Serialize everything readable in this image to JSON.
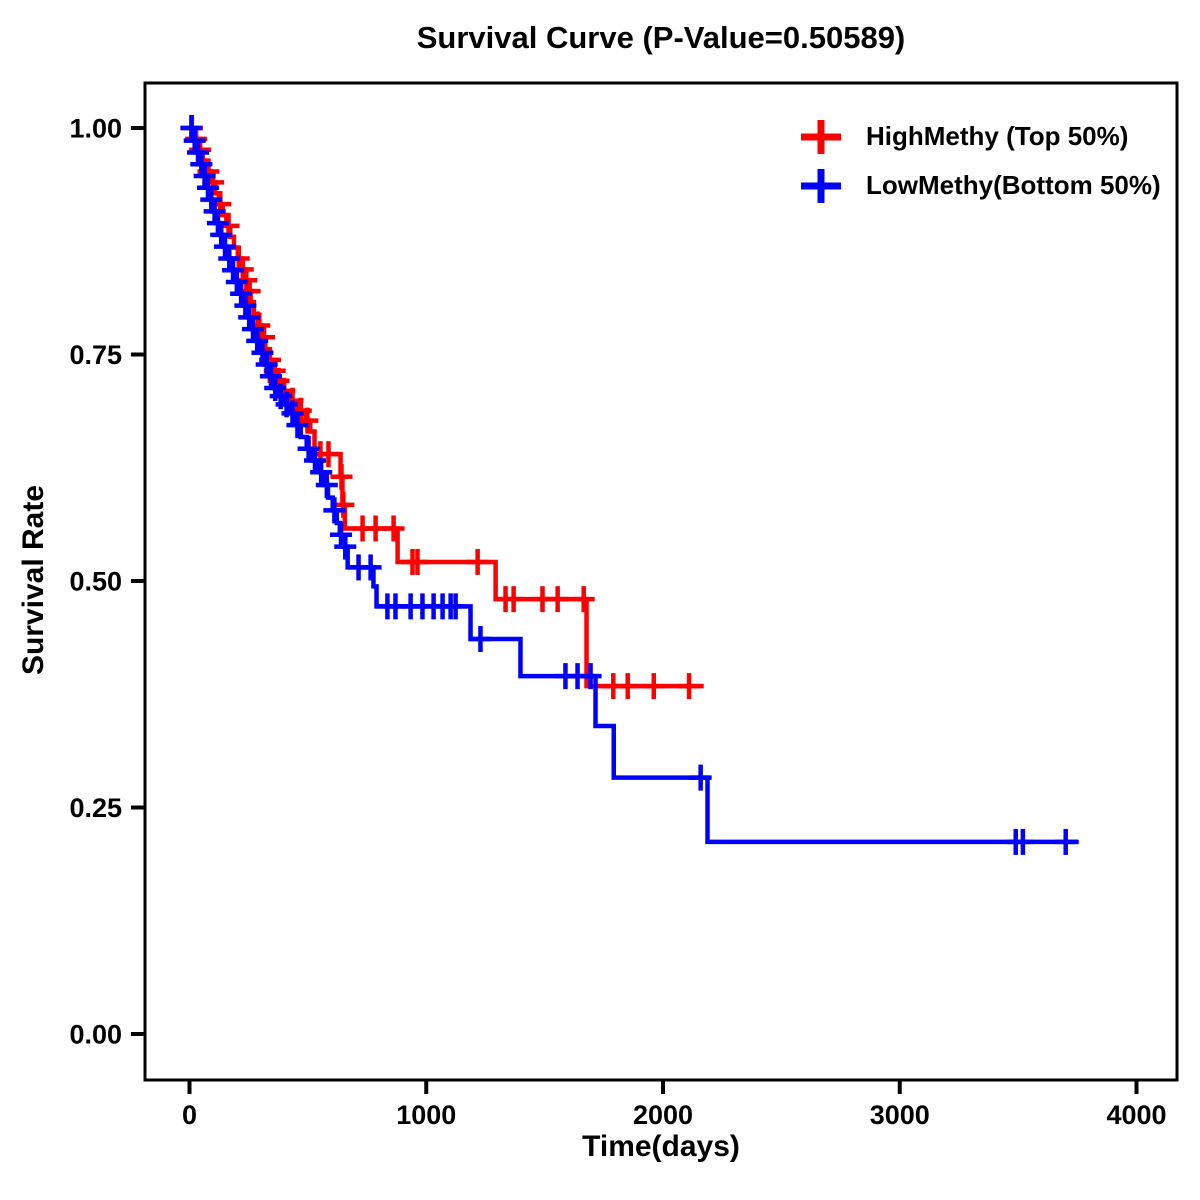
{
  "title": "Survival Curve (P-Value=0.50589)",
  "chart_data": {
    "type": "line",
    "subtype": "kaplan-meier-step-curve",
    "title": "Survival Curve (P-Value=0.50589)",
    "p_value": "0.50589",
    "xlabel": "Time(days)",
    "ylabel": "Survival Rate",
    "xlim": [
      -188,
      4171
    ],
    "ylim": [
      -0.05,
      1.05
    ],
    "x_ticks": [
      0,
      1000,
      2000,
      3000,
      4000
    ],
    "y_ticks": [
      0.0,
      0.25,
      0.5,
      0.75,
      1.0
    ],
    "y_tick_labels": [
      "0.00",
      "0.25",
      "0.50",
      "0.75",
      "1.00"
    ],
    "grid": false,
    "legend_position": "top-right-inside",
    "background": "#ffffff",
    "axis_color": "#000000",
    "series": [
      {
        "name": "HighMethy (Top 50%)",
        "color": "#FF0000",
        "start": [
          0,
          1.0
        ],
        "events": [
          [
            20,
            0.988
          ],
          [
            38,
            0.976
          ],
          [
            56,
            0.964
          ],
          [
            74,
            0.952
          ],
          [
            92,
            0.94
          ],
          [
            108,
            0.928
          ],
          [
            124,
            0.916
          ],
          [
            140,
            0.904
          ],
          [
            156,
            0.892
          ],
          [
            172,
            0.88
          ],
          [
            188,
            0.868
          ],
          [
            204,
            0.856
          ],
          [
            218,
            0.844
          ],
          [
            232,
            0.832
          ],
          [
            246,
            0.82
          ],
          [
            258,
            0.808
          ],
          [
            272,
            0.795
          ],
          [
            288,
            0.782
          ],
          [
            304,
            0.769
          ],
          [
            320,
            0.756
          ],
          [
            336,
            0.744
          ],
          [
            352,
            0.732
          ],
          [
            368,
            0.721
          ],
          [
            385,
            0.71
          ],
          [
            420,
            0.699
          ],
          [
            455,
            0.688
          ],
          [
            490,
            0.677
          ],
          [
            510,
            0.665
          ],
          [
            528,
            0.64
          ],
          [
            638,
            0.615
          ],
          [
            646,
            0.584
          ],
          [
            656,
            0.558
          ],
          [
            879,
            0.521
          ],
          [
            1293,
            0.48
          ],
          [
            1677,
            0.384
          ]
        ],
        "end_time": 2172,
        "censor_times": [
          10,
          28,
          45,
          80,
          100,
          130,
          165,
          208,
          225,
          240,
          248,
          254,
          295,
          315,
          340,
          360,
          376,
          400,
          435,
          470,
          498,
          553,
          587,
          642,
          650,
          731,
          786,
          862,
          942,
          963,
          1217,
          1335,
          1369,
          1491,
          1555,
          1665,
          1790,
          1851,
          1961,
          2110
        ]
      },
      {
        "name": "LowMethy(Bottom 50%)",
        "color": "#0000FF",
        "start": [
          0,
          1.0
        ],
        "events": [
          [
            12,
            0.986
          ],
          [
            26,
            0.973
          ],
          [
            40,
            0.96
          ],
          [
            54,
            0.947
          ],
          [
            68,
            0.934
          ],
          [
            82,
            0.921
          ],
          [
            96,
            0.908
          ],
          [
            112,
            0.895
          ],
          [
            128,
            0.882
          ],
          [
            144,
            0.869
          ],
          [
            160,
            0.856
          ],
          [
            176,
            0.843
          ],
          [
            192,
            0.83
          ],
          [
            210,
            0.817
          ],
          [
            228,
            0.804
          ],
          [
            246,
            0.791
          ],
          [
            264,
            0.778
          ],
          [
            282,
            0.765
          ],
          [
            300,
            0.752
          ],
          [
            318,
            0.739
          ],
          [
            336,
            0.726
          ],
          [
            354,
            0.713
          ],
          [
            372,
            0.704
          ],
          [
            395,
            0.695
          ],
          [
            420,
            0.685
          ],
          [
            448,
            0.672
          ],
          [
            470,
            0.659
          ],
          [
            495,
            0.646
          ],
          [
            520,
            0.633
          ],
          [
            545,
            0.62
          ],
          [
            565,
            0.606
          ],
          [
            585,
            0.592
          ],
          [
            605,
            0.578
          ],
          [
            622,
            0.564
          ],
          [
            635,
            0.551
          ],
          [
            648,
            0.538
          ],
          [
            668,
            0.515
          ],
          [
            777,
            0.494
          ],
          [
            790,
            0.472
          ],
          [
            1187,
            0.436
          ],
          [
            1398,
            0.395
          ],
          [
            1715,
            0.34
          ],
          [
            1792,
            0.283
          ],
          [
            2188,
            0.212
          ]
        ],
        "end_time": 3756,
        "censor_times": [
          8,
          22,
          36,
          50,
          64,
          78,
          92,
          106,
          120,
          134,
          150,
          168,
          184,
          200,
          218,
          236,
          252,
          268,
          286,
          308,
          326,
          344,
          362,
          385,
          410,
          435,
          456,
          503,
          530,
          556,
          580,
          612,
          640,
          658,
          714,
          765,
          836,
          870,
          934,
          984,
          1031,
          1069,
          1103,
          1124,
          1229,
          1588,
          1639,
          1694,
          2159,
          3490,
          3520,
          3701
        ]
      }
    ]
  }
}
